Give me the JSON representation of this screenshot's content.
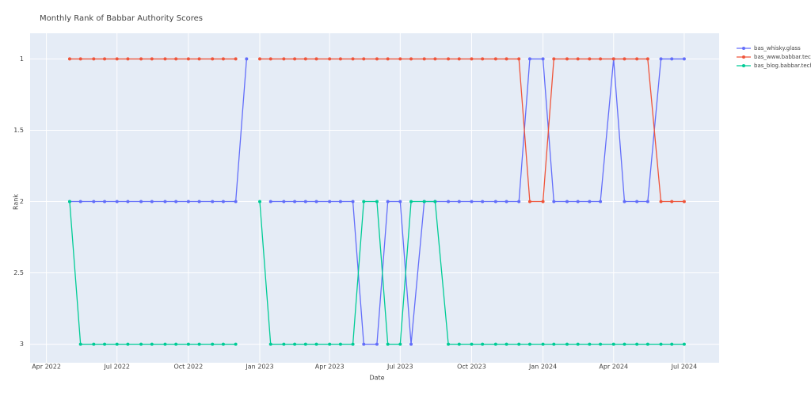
{
  "chart_data": {
    "type": "line",
    "title": "Monthly Rank of Babbar Authority Scores",
    "x_label": "Date",
    "y_label": "Rank",
    "x": [
      "2022-05-01",
      "2022-05-15",
      "2022-06-01",
      "2022-06-15",
      "2022-07-01",
      "2022-07-15",
      "2022-08-01",
      "2022-08-15",
      "2022-09-01",
      "2022-09-15",
      "2022-10-01",
      "2022-10-15",
      "2022-11-01",
      "2022-11-15",
      "2022-12-01",
      "2022-12-15",
      "2023-01-01",
      "2023-01-15",
      "2023-02-01",
      "2023-02-15",
      "2023-03-01",
      "2023-03-15",
      "2023-04-01",
      "2023-04-15",
      "2023-05-01",
      "2023-05-15",
      "2023-06-01",
      "2023-06-15",
      "2023-07-01",
      "2023-07-15",
      "2023-08-01",
      "2023-08-15",
      "2023-09-01",
      "2023-09-15",
      "2023-10-01",
      "2023-10-15",
      "2023-11-01",
      "2023-11-15",
      "2023-12-01",
      "2023-12-15",
      "2024-01-01",
      "2024-01-15",
      "2024-02-01",
      "2024-02-15",
      "2024-03-01",
      "2024-03-15",
      "2024-04-01",
      "2024-04-15",
      "2024-05-01",
      "2024-05-15",
      "2024-06-01",
      "2024-06-15",
      "2024-07-01"
    ],
    "series": [
      {
        "name": "bas_whisky.glass",
        "color": "#636efa",
        "values": [
          2,
          2,
          2,
          2,
          2,
          2,
          2,
          2,
          2,
          2,
          2,
          2,
          2,
          2,
          2,
          1,
          null,
          2,
          2,
          2,
          2,
          2,
          2,
          2,
          2,
          3,
          3,
          2,
          2,
          3,
          2,
          2,
          2,
          2,
          2,
          2,
          2,
          2,
          2,
          1,
          1,
          2,
          2,
          2,
          2,
          2,
          1,
          2,
          2,
          2,
          1,
          1,
          1
        ]
      },
      {
        "name": "bas_www.babbar.tech",
        "color": "#ef553b",
        "values": [
          1,
          1,
          1,
          1,
          1,
          1,
          1,
          1,
          1,
          1,
          1,
          1,
          1,
          1,
          1,
          null,
          1,
          1,
          1,
          1,
          1,
          1,
          1,
          1,
          1,
          1,
          1,
          1,
          1,
          1,
          1,
          1,
          1,
          1,
          1,
          1,
          1,
          1,
          1,
          2,
          2,
          1,
          1,
          1,
          1,
          1,
          1,
          1,
          1,
          1,
          2,
          2,
          2
        ]
      },
      {
        "name": "bas_blog.babbar.tech",
        "color": "#00cc96",
        "values": [
          2,
          3,
          3,
          3,
          3,
          3,
          3,
          3,
          3,
          3,
          3,
          3,
          3,
          3,
          3,
          null,
          2,
          3,
          3,
          3,
          3,
          3,
          3,
          3,
          3,
          2,
          2,
          3,
          3,
          2,
          2,
          2,
          3,
          3,
          3,
          3,
          3,
          3,
          3,
          3,
          3,
          3,
          3,
          3,
          3,
          3,
          3,
          3,
          3,
          3,
          3,
          3,
          3
        ]
      }
    ],
    "xlim": [
      "2022-03-11",
      "2024-08-15"
    ],
    "xticks": [
      {
        "value": "2022-04-01",
        "label": "Apr 2022"
      },
      {
        "value": "2022-07-01",
        "label": "Jul 2022"
      },
      {
        "value": "2022-10-01",
        "label": "Oct 2022"
      },
      {
        "value": "2023-01-01",
        "label": "Jan 2023"
      },
      {
        "value": "2023-04-01",
        "label": "Apr 2023"
      },
      {
        "value": "2023-07-01",
        "label": "Jul 2023"
      },
      {
        "value": "2023-10-01",
        "label": "Oct 2023"
      },
      {
        "value": "2024-01-01",
        "label": "Jan 2024"
      },
      {
        "value": "2024-04-01",
        "label": "Apr 2024"
      },
      {
        "value": "2024-07-01",
        "label": "Jul 2024"
      }
    ],
    "ylim": [
      3.13,
      0.82
    ],
    "yticks": [
      1,
      1.5,
      2,
      2.5,
      3
    ],
    "grid": true,
    "legend": "right"
  }
}
